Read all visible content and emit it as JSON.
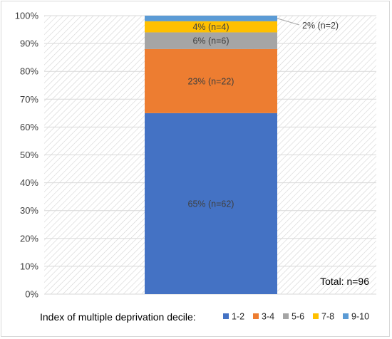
{
  "chart_data": {
    "type": "bar",
    "stacked": true,
    "categories": [
      ""
    ],
    "series": [
      {
        "name": "1-2",
        "values": [
          65
        ],
        "label": "65% (n=62)",
        "color": "#4472C4"
      },
      {
        "name": "3-4",
        "values": [
          23
        ],
        "label": "23% (n=22)",
        "color": "#ED7D31"
      },
      {
        "name": "5-6",
        "values": [
          6
        ],
        "label": "6% (n=6)",
        "color": "#A5A5A5"
      },
      {
        "name": "7-8",
        "values": [
          4
        ],
        "label": "4% (n=4)",
        "color": "#FFC000"
      },
      {
        "name": "9-10",
        "values": [
          2
        ],
        "label": "2% (n=2)",
        "color": "#5B9BD5"
      }
    ],
    "ylim": [
      0,
      100
    ],
    "yticks": [
      "0%",
      "10%",
      "20%",
      "30%",
      "40%",
      "50%",
      "60%",
      "70%",
      "80%",
      "90%",
      "100%"
    ],
    "legend_title": "Index of multiple deprivation decile:",
    "legend_position": "bottom",
    "annotation": "Total: n=96",
    "grid": true,
    "background_pattern": "diagonal-hatch"
  }
}
